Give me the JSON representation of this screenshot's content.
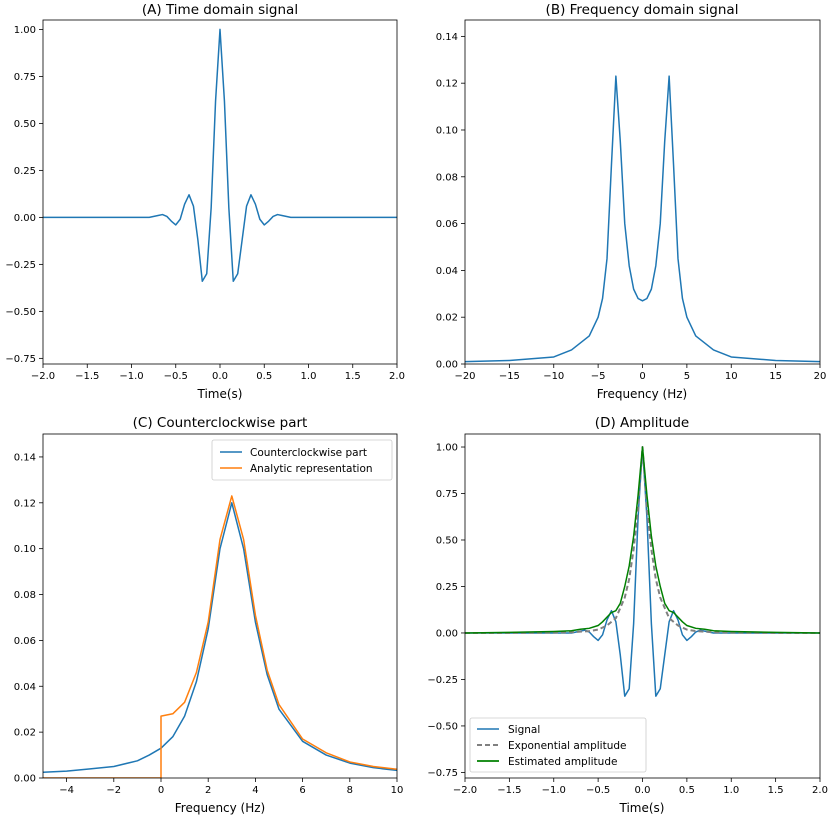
{
  "chart_data": [
    {
      "id": "A",
      "type": "line",
      "title": "(A) Time domain signal",
      "xlabel": "Time(s)",
      "ylabel": "",
      "xlim": [
        -2.0,
        2.0
      ],
      "ylim": [
        -0.78,
        1.05
      ],
      "xticks": [
        -2.0,
        -1.5,
        -1.0,
        -0.5,
        0.0,
        0.5,
        1.0,
        1.5,
        2.0
      ],
      "xtick_labels": [
        "−2.0",
        "−1.5",
        "−1.0",
        "−0.5",
        "0.0",
        "0.5",
        "1.0",
        "1.5",
        "2.0"
      ],
      "yticks": [
        -0.75,
        -0.5,
        -0.25,
        0.0,
        0.25,
        0.5,
        0.75,
        1.0
      ],
      "ytick_labels": [
        "−0.75",
        "−0.50",
        "−0.25",
        "0.00",
        "0.25",
        "0.50",
        "0.75",
        "1.00"
      ],
      "series": [
        {
          "name": "signal",
          "color": "#1f77b4",
          "x": [
            -2.0,
            -1.0,
            -0.8,
            -0.7,
            -0.65,
            -0.6,
            -0.55,
            -0.5,
            -0.45,
            -0.4,
            -0.35,
            -0.3,
            -0.25,
            -0.2,
            -0.15,
            -0.1,
            -0.05,
            0.0,
            0.05,
            0.1,
            0.15,
            0.2,
            0.25,
            0.3,
            0.35,
            0.4,
            0.45,
            0.5,
            0.55,
            0.6,
            0.65,
            0.7,
            0.8,
            1.0,
            2.0
          ],
          "y": [
            0.0,
            0.0,
            0.0,
            0.01,
            0.015,
            0.005,
            -0.02,
            -0.04,
            -0.01,
            0.07,
            0.12,
            0.06,
            -0.12,
            -0.34,
            -0.3,
            0.05,
            0.62,
            1.0,
            0.62,
            0.05,
            -0.34,
            -0.3,
            -0.12,
            0.06,
            0.12,
            0.07,
            -0.01,
            -0.04,
            -0.02,
            0.005,
            0.015,
            0.01,
            0.0,
            0.0,
            0.0
          ]
        }
      ]
    },
    {
      "id": "B",
      "type": "line",
      "title": "(B) Frequency domain signal",
      "xlabel": "Frequency (Hz)",
      "ylabel": "",
      "xlim": [
        -20,
        20
      ],
      "ylim": [
        0,
        0.147
      ],
      "xticks": [
        -20,
        -15,
        -10,
        -5,
        0,
        5,
        10,
        15,
        20
      ],
      "xtick_labels": [
        "−20",
        "−15",
        "−10",
        "−5",
        "0",
        "5",
        "10",
        "15",
        "20"
      ],
      "yticks": [
        0.0,
        0.02,
        0.04,
        0.06,
        0.08,
        0.1,
        0.12,
        0.14
      ],
      "ytick_labels": [
        "0.00",
        "0.02",
        "0.04",
        "0.06",
        "0.08",
        "0.10",
        "0.12",
        "0.14"
      ],
      "series": [
        {
          "name": "spectrum",
          "color": "#1f77b4",
          "x": [
            -20,
            -15,
            -10,
            -8,
            -6,
            -5,
            -4.5,
            -4,
            -3.5,
            -3,
            -2.5,
            -2,
            -1.5,
            -1,
            -0.5,
            0,
            0.5,
            1,
            1.5,
            2,
            2.5,
            3,
            3.5,
            4,
            4.5,
            5,
            6,
            8,
            10,
            15,
            20
          ],
          "y": [
            0.001,
            0.0015,
            0.003,
            0.006,
            0.012,
            0.02,
            0.028,
            0.045,
            0.085,
            0.123,
            0.095,
            0.06,
            0.042,
            0.032,
            0.028,
            0.027,
            0.028,
            0.032,
            0.042,
            0.06,
            0.095,
            0.123,
            0.085,
            0.045,
            0.028,
            0.02,
            0.012,
            0.006,
            0.003,
            0.0015,
            0.001
          ]
        }
      ]
    },
    {
      "id": "C",
      "type": "line",
      "title": "(C) Counterclockwise part",
      "xlabel": "Frequency (Hz)",
      "ylabel": "",
      "xlim": [
        -5,
        10
      ],
      "ylim": [
        0,
        0.15
      ],
      "xticks": [
        -4,
        -2,
        0,
        2,
        4,
        6,
        8,
        10
      ],
      "xtick_labels": [
        "−4",
        "−2",
        "0",
        "2",
        "4",
        "6",
        "8",
        "10"
      ],
      "yticks": [
        0.0,
        0.02,
        0.04,
        0.06,
        0.08,
        0.1,
        0.12,
        0.14
      ],
      "ytick_labels": [
        "0.00",
        "0.02",
        "0.04",
        "0.06",
        "0.08",
        "0.10",
        "0.12",
        "0.14"
      ],
      "legend": "top-right",
      "series": [
        {
          "name": "Counterclockwise part",
          "color": "#1f77b4",
          "x": [
            -5,
            -4,
            -3,
            -2,
            -1,
            -0.5,
            0,
            0.5,
            1,
            1.5,
            2,
            2.5,
            3,
            3.5,
            4,
            4.5,
            5,
            6,
            7,
            8,
            9,
            10
          ],
          "y": [
            0.0025,
            0.003,
            0.004,
            0.005,
            0.0075,
            0.01,
            0.013,
            0.018,
            0.027,
            0.042,
            0.065,
            0.1,
            0.12,
            0.1,
            0.068,
            0.045,
            0.03,
            0.016,
            0.01,
            0.0065,
            0.0045,
            0.0033
          ]
        },
        {
          "name": "Analytic representation",
          "color": "#ff7f0e",
          "x": [
            -5,
            -0.01,
            0.0,
            0.0,
            0.5,
            1,
            1.5,
            2,
            2.5,
            3,
            3.5,
            4,
            4.5,
            5,
            6,
            7,
            8,
            9,
            10
          ],
          "y": [
            0.0,
            0.0,
            0.0,
            0.027,
            0.028,
            0.033,
            0.046,
            0.068,
            0.104,
            0.123,
            0.104,
            0.071,
            0.047,
            0.032,
            0.017,
            0.011,
            0.007,
            0.005,
            0.0038
          ]
        }
      ]
    },
    {
      "id": "D",
      "type": "line",
      "title": "(D) Amplitude",
      "xlabel": "Time(s)",
      "ylabel": "",
      "xlim": [
        -2.0,
        2.0
      ],
      "ylim": [
        -0.78,
        1.07
      ],
      "xticks": [
        -2.0,
        -1.5,
        -1.0,
        -0.5,
        0.0,
        0.5,
        1.0,
        1.5,
        2.0
      ],
      "xtick_labels": [
        "−2.0",
        "−1.5",
        "−1.0",
        "−0.5",
        "0.0",
        "0.5",
        "1.0",
        "1.5",
        "2.0"
      ],
      "yticks": [
        -0.75,
        -0.5,
        -0.25,
        0.0,
        0.25,
        0.5,
        0.75,
        1.0
      ],
      "ytick_labels": [
        "−0.75",
        "−0.50",
        "−0.25",
        "0.00",
        "0.25",
        "0.50",
        "0.75",
        "1.00"
      ],
      "legend": "lower-left",
      "series": [
        {
          "name": "Signal",
          "color": "#1f77b4",
          "dash": "solid",
          "x": [
            -2.0,
            -1.0,
            -0.8,
            -0.7,
            -0.65,
            -0.6,
            -0.55,
            -0.5,
            -0.45,
            -0.4,
            -0.35,
            -0.3,
            -0.25,
            -0.2,
            -0.15,
            -0.1,
            -0.05,
            0.0,
            0.05,
            0.1,
            0.15,
            0.2,
            0.25,
            0.3,
            0.35,
            0.4,
            0.45,
            0.5,
            0.55,
            0.6,
            0.65,
            0.7,
            0.8,
            1.0,
            2.0
          ],
          "y": [
            0.0,
            0.0,
            0.0,
            0.01,
            0.015,
            0.005,
            -0.02,
            -0.04,
            -0.01,
            0.07,
            0.12,
            0.06,
            -0.12,
            -0.34,
            -0.3,
            0.05,
            0.62,
            1.0,
            0.62,
            0.05,
            -0.34,
            -0.3,
            -0.12,
            0.06,
            0.12,
            0.07,
            -0.01,
            -0.04,
            -0.02,
            0.005,
            0.015,
            0.01,
            0.0,
            0.0,
            0.0
          ]
        },
        {
          "name": "Exponential amplitude",
          "color": "#808080",
          "dash": "dashed",
          "x": [
            -2.0,
            -1.5,
            -1.0,
            -0.8,
            -0.6,
            -0.5,
            -0.4,
            -0.3,
            -0.2,
            -0.15,
            -0.1,
            -0.05,
            0.0,
            0.05,
            0.1,
            0.15,
            0.2,
            0.3,
            0.4,
            0.5,
            0.6,
            0.8,
            1.0,
            1.5,
            2.0
          ],
          "y": [
            0.0,
            0.0,
            0.002,
            0.004,
            0.01,
            0.018,
            0.04,
            0.08,
            0.19,
            0.29,
            0.45,
            0.67,
            1.0,
            0.67,
            0.45,
            0.29,
            0.19,
            0.08,
            0.04,
            0.018,
            0.01,
            0.004,
            0.002,
            0.0,
            0.0
          ]
        },
        {
          "name": "Estimated amplitude",
          "color": "#008000",
          "dash": "solid",
          "x": [
            -2.0,
            -1.5,
            -1.0,
            -0.8,
            -0.7,
            -0.6,
            -0.5,
            -0.45,
            -0.4,
            -0.35,
            -0.3,
            -0.25,
            -0.2,
            -0.15,
            -0.1,
            -0.05,
            0.0,
            0.05,
            0.1,
            0.15,
            0.2,
            0.25,
            0.3,
            0.35,
            0.4,
            0.45,
            0.5,
            0.6,
            0.7,
            0.8,
            1.0,
            1.5,
            2.0
          ],
          "y": [
            0.0,
            0.003,
            0.008,
            0.012,
            0.02,
            0.025,
            0.04,
            0.06,
            0.085,
            0.11,
            0.12,
            0.16,
            0.25,
            0.36,
            0.52,
            0.74,
            1.0,
            0.74,
            0.52,
            0.36,
            0.25,
            0.16,
            0.12,
            0.11,
            0.085,
            0.06,
            0.04,
            0.025,
            0.02,
            0.012,
            0.008,
            0.003,
            0.0
          ]
        }
      ]
    }
  ]
}
